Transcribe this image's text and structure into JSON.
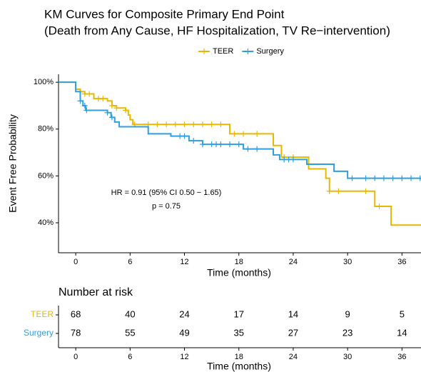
{
  "chart_data": {
    "type": "km",
    "title": "KM Curves for Composite Primary End Point",
    "subtitle": "(Death from Any Cause, HF Hospitalization, TV Re−intervention)",
    "xlabel": "Time (months)",
    "ylabel": "Event Free Probability",
    "xlim": [
      -1.9,
      38.1
    ],
    "xticks": [
      0,
      6,
      12,
      18,
      24,
      30,
      36
    ],
    "ylim": [
      27.2,
      103.4
    ],
    "yticks": [
      {
        "value": 40,
        "label": "40%"
      },
      {
        "value": 60,
        "label": "60%"
      },
      {
        "value": 80,
        "label": "80%"
      },
      {
        "value": 100,
        "label": "100%"
      }
    ],
    "annotations": [
      "HR = 0.91 (95% CI 0.50 − 1.65)",
      "p = 0.75"
    ],
    "series": [
      {
        "name": "TEER",
        "color": "#E7B800",
        "x": [
          -1.9,
          0,
          0.5,
          1,
          2,
          3.5,
          4,
          4.5,
          5.5,
          5.8,
          6,
          6.3,
          17,
          21.8,
          22.7,
          25.7,
          27.6,
          28,
          33,
          34.8,
          38.1
        ],
        "values": [
          100,
          97,
          96,
          95,
          93,
          92,
          90,
          89,
          88,
          86,
          84,
          82,
          78,
          73,
          68,
          63,
          59,
          53.5,
          47,
          39,
          39
        ],
        "censored": [
          0.5,
          1,
          1.5,
          2.5,
          3,
          4,
          4.5,
          5.5,
          6.5,
          8,
          9,
          10,
          11,
          12,
          13,
          14,
          15,
          16,
          17.5,
          18.5,
          20,
          23,
          24,
          28,
          29,
          32,
          33.5
        ]
      },
      {
        "name": "Surgery",
        "color": "#2E9FDF",
        "x": [
          -1.9,
          0,
          0.5,
          0.8,
          1.1,
          3.5,
          3.9,
          4.3,
          4.8,
          8,
          10.5,
          12.5,
          14,
          18.5,
          21.8,
          22.5,
          25.5,
          28.5,
          30,
          38.1
        ],
        "values": [
          100,
          96,
          92,
          90,
          88,
          87,
          85,
          83,
          81,
          78,
          77,
          75,
          73.5,
          71.5,
          69,
          67,
          65,
          62,
          59,
          59
        ],
        "censored": [
          0.5,
          1,
          1.2,
          3.5,
          4,
          11.5,
          12,
          13,
          14,
          15,
          15.5,
          16,
          17,
          18,
          19,
          20,
          23,
          23.5,
          24,
          30.5,
          32,
          33,
          34,
          35,
          36,
          37,
          38
        ]
      }
    ]
  },
  "risk_table": {
    "title": "Number at risk",
    "xlabel": "Time (months)",
    "rows": [
      {
        "name": "TEER",
        "values": [
          68,
          40,
          24,
          17,
          14,
          9,
          5
        ]
      },
      {
        "name": "Surgery",
        "values": [
          78,
          55,
          49,
          35,
          27,
          23,
          14
        ]
      }
    ]
  }
}
